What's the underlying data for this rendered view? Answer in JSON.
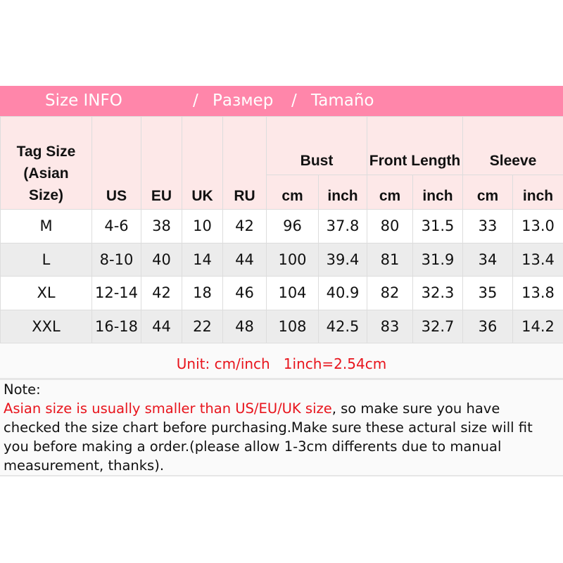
{
  "banner": {
    "title": "Size INFO",
    "sep1": "/",
    "ru": "Размер",
    "sep2": "/",
    "es": "Tamaño"
  },
  "header": {
    "tag_size": "Tag Size (Asian Size)",
    "us": "US",
    "eu": "EU",
    "uk": "UK",
    "ru": "RU",
    "bust": "Bust",
    "front_length": "Front Length",
    "sleeve": "Sleeve",
    "cm": "cm",
    "inch": "inch"
  },
  "rows": [
    [
      "M",
      "4-6",
      "38",
      "10",
      "42",
      "96",
      "37.8",
      "80",
      "31.5",
      "33",
      "13.0"
    ],
    [
      "L",
      "8-10",
      "40",
      "14",
      "44",
      "100",
      "39.4",
      "81",
      "31.9",
      "34",
      "13.4"
    ],
    [
      "XL",
      "12-14",
      "42",
      "18",
      "46",
      "104",
      "40.9",
      "82",
      "32.3",
      "35",
      "13.8"
    ],
    [
      "XXL",
      "16-18",
      "44",
      "22",
      "48",
      "108",
      "42.5",
      "83",
      "32.7",
      "36",
      "14.2"
    ]
  ],
  "unit": "Unit: cm/inch   1inch=2.54cm",
  "note": {
    "label": "Note:",
    "highlight": "Asian size is usually smaller than US/EU/UK size",
    "text": ", so make sure you have checked the size chart before purchasing.Make sure these actural size will fit you before making a order.(please allow 1-3cm differents due to manual measurement, thanks)."
  },
  "colors": {
    "banner": "#ff86aa",
    "header_bg": "#fde8e8",
    "accent_red": "#e8141c"
  }
}
